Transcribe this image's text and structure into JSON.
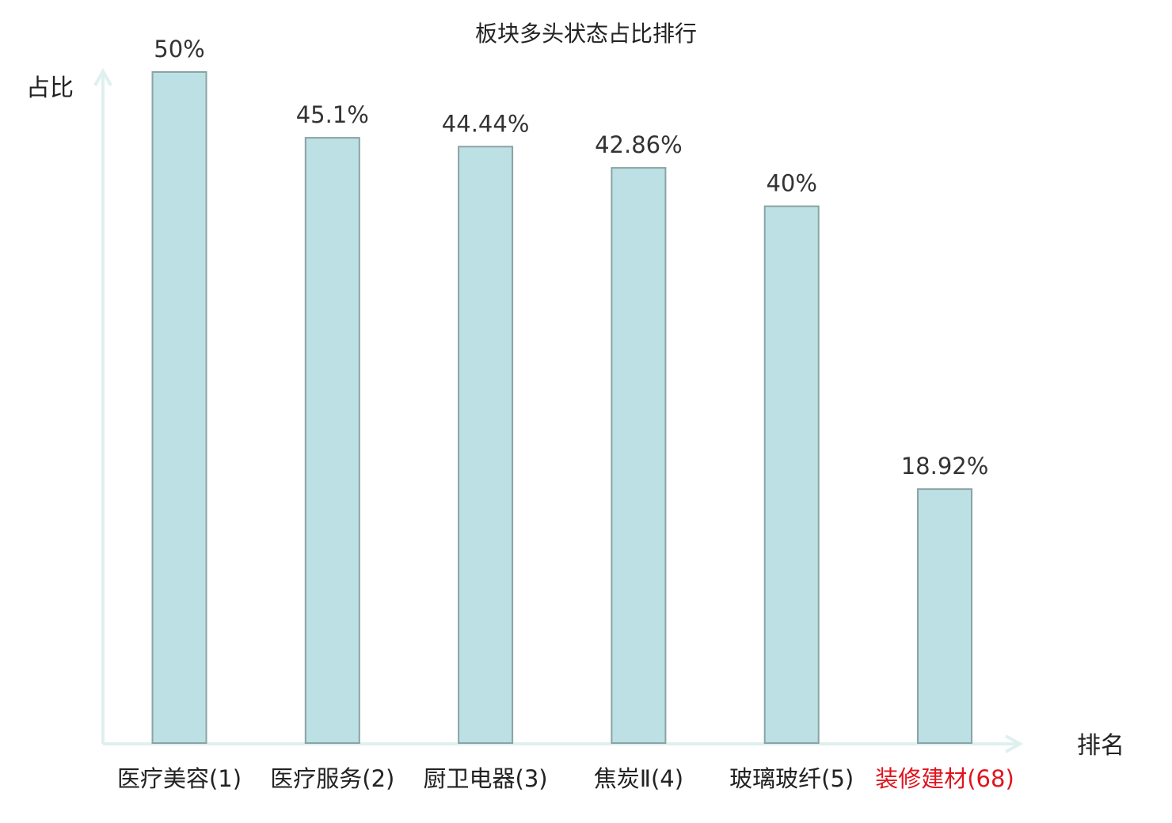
{
  "chart_data": {
    "type": "bar",
    "title": "板块多头状态占比排行",
    "ylabel": "占比",
    "xlabel": "排名",
    "ylim": [
      0,
      50
    ],
    "grid": false,
    "categories": [
      "医疗美容(1)",
      "医疗服务(2)",
      "厨卫电器(3)",
      "焦炭Ⅱ(4)",
      "玻璃玻纤(5)",
      "装修建材(68)"
    ],
    "values": [
      50,
      45.1,
      44.44,
      42.86,
      40,
      18.92
    ],
    "value_labels": [
      "50%",
      "45.1%",
      "44.44%",
      "42.86%",
      "40%",
      "18.92%"
    ],
    "highlight_index": 5
  },
  "colors": {
    "bar_fill": "#bce0e3",
    "bar_stroke": "#8aa3a6",
    "axis": "#dff0ee",
    "text": "#222222",
    "highlight": "#e0141e"
  }
}
